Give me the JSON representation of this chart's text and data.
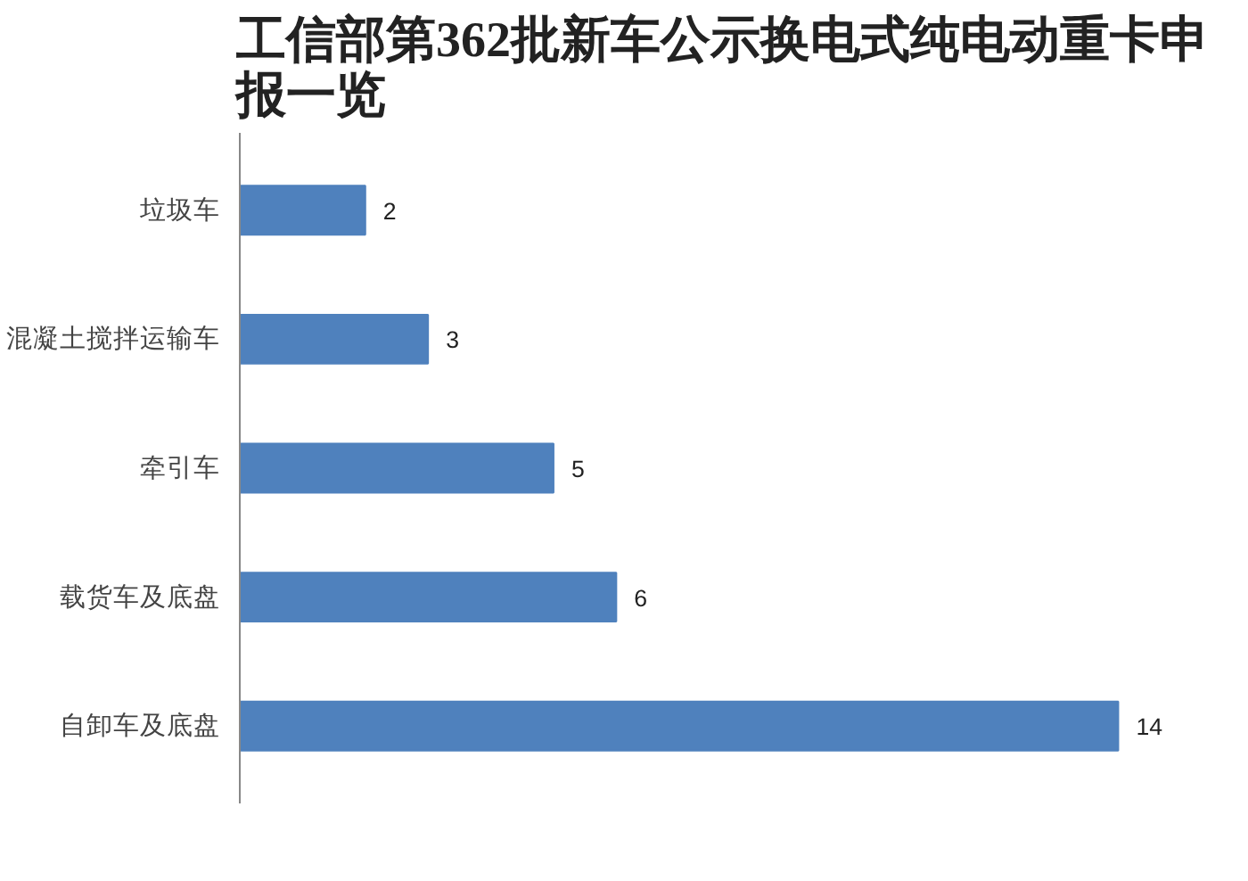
{
  "chart_data": {
    "type": "bar",
    "orientation": "horizontal",
    "title": "工信部第362批新车公示换电式纯电动重卡申报一览",
    "categories": [
      "垃圾车",
      "混凝土搅拌运输车",
      "牵引车",
      "载货车及底盘",
      "自卸车及底盘"
    ],
    "values": [
      2,
      3,
      5,
      6,
      14
    ],
    "color": "#4f81bd",
    "data_labels": true,
    "grid": false,
    "tick_labels": "y"
  }
}
